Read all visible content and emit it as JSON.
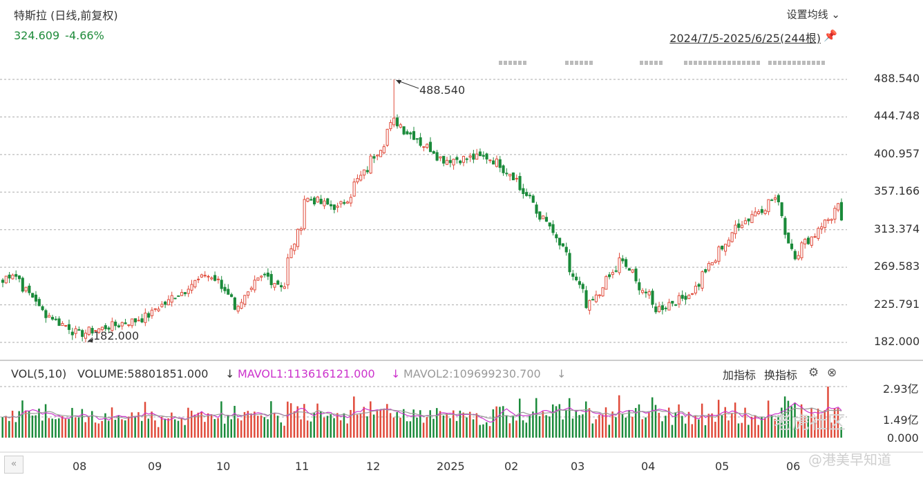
{
  "header": {
    "title": "特斯拉 (日线,前复权)",
    "last_price": "324.609",
    "change_pct": "-4.66%",
    "ma_setting_label": "设置均线",
    "range_label": "2024/7/5-2025/6/25(244根)"
  },
  "volume_panel": {
    "vol_label": "VOL(5,10)",
    "volume_label": "VOLUME:58801851.000",
    "mavol1_label": "MAVOL1:113616121.000",
    "mavol2_label": "MAVOL2:109699230.700",
    "add_indicator": "加指标",
    "switch_indicator": "换指标",
    "y_labels": [
      "2.93亿",
      "1.49亿",
      "0.000"
    ]
  },
  "watermark": {
    "brand": "老虎社区",
    "author": "@港美早知道"
  },
  "colors": {
    "up": "#e04a3a",
    "down": "#1a8a3a",
    "mavol1": "#cc33cc",
    "mavol2": "#999999"
  },
  "chart_data": {
    "type": "candlestick",
    "title": "特斯拉 (日线,前复权)",
    "y_ticks": [
      "488.540",
      "444.748",
      "400.957",
      "357.166",
      "313.374",
      "269.583",
      "225.791",
      "182.000"
    ],
    "ylim": [
      182.0,
      488.54
    ],
    "x_ticks": [
      "08",
      "09",
      "10",
      "11",
      "12",
      "2025",
      "02",
      "03",
      "04",
      "05",
      "06"
    ],
    "annotations": [
      {
        "label": "488.540",
        "kind": "high"
      },
      {
        "label": "182.000",
        "kind": "low"
      }
    ],
    "approx_closes": [
      {
        "date": "2024-07-05",
        "value": 252
      },
      {
        "date": "2024-07-10",
        "value": 263
      },
      {
        "date": "2024-07-24",
        "value": 215
      },
      {
        "date": "2024-08-07",
        "value": 192
      },
      {
        "date": "2024-09-03",
        "value": 210
      },
      {
        "date": "2024-09-30",
        "value": 262
      },
      {
        "date": "2024-10-10",
        "value": 238
      },
      {
        "date": "2024-10-11",
        "value": 218
      },
      {
        "date": "2024-10-24",
        "value": 260
      },
      {
        "date": "2024-11-01",
        "value": 248
      },
      {
        "date": "2024-11-11",
        "value": 350
      },
      {
        "date": "2024-11-25",
        "value": 338
      },
      {
        "date": "2024-12-10",
        "value": 400
      },
      {
        "date": "2024-12-18",
        "value": 440
      },
      {
        "date": "2025-01-08",
        "value": 395
      },
      {
        "date": "2025-01-27",
        "value": 398
      },
      {
        "date": "2025-02-05",
        "value": 380
      },
      {
        "date": "2025-02-25",
        "value": 302
      },
      {
        "date": "2025-03-10",
        "value": 222
      },
      {
        "date": "2025-03-24",
        "value": 278
      },
      {
        "date": "2025-04-08",
        "value": 221
      },
      {
        "date": "2025-04-22",
        "value": 238
      },
      {
        "date": "2025-05-12",
        "value": 318
      },
      {
        "date": "2025-05-28",
        "value": 350
      },
      {
        "date": "2025-06-05",
        "value": 284
      },
      {
        "date": "2025-06-24",
        "value": 340
      },
      {
        "date": "2025-06-25",
        "value": 324.609
      }
    ],
    "volume": {
      "ylim": [
        0,
        293000000
      ],
      "volume_last": 58801851,
      "mavol1_last": 113616121,
      "mavol2_last": 109699230.7
    }
  }
}
